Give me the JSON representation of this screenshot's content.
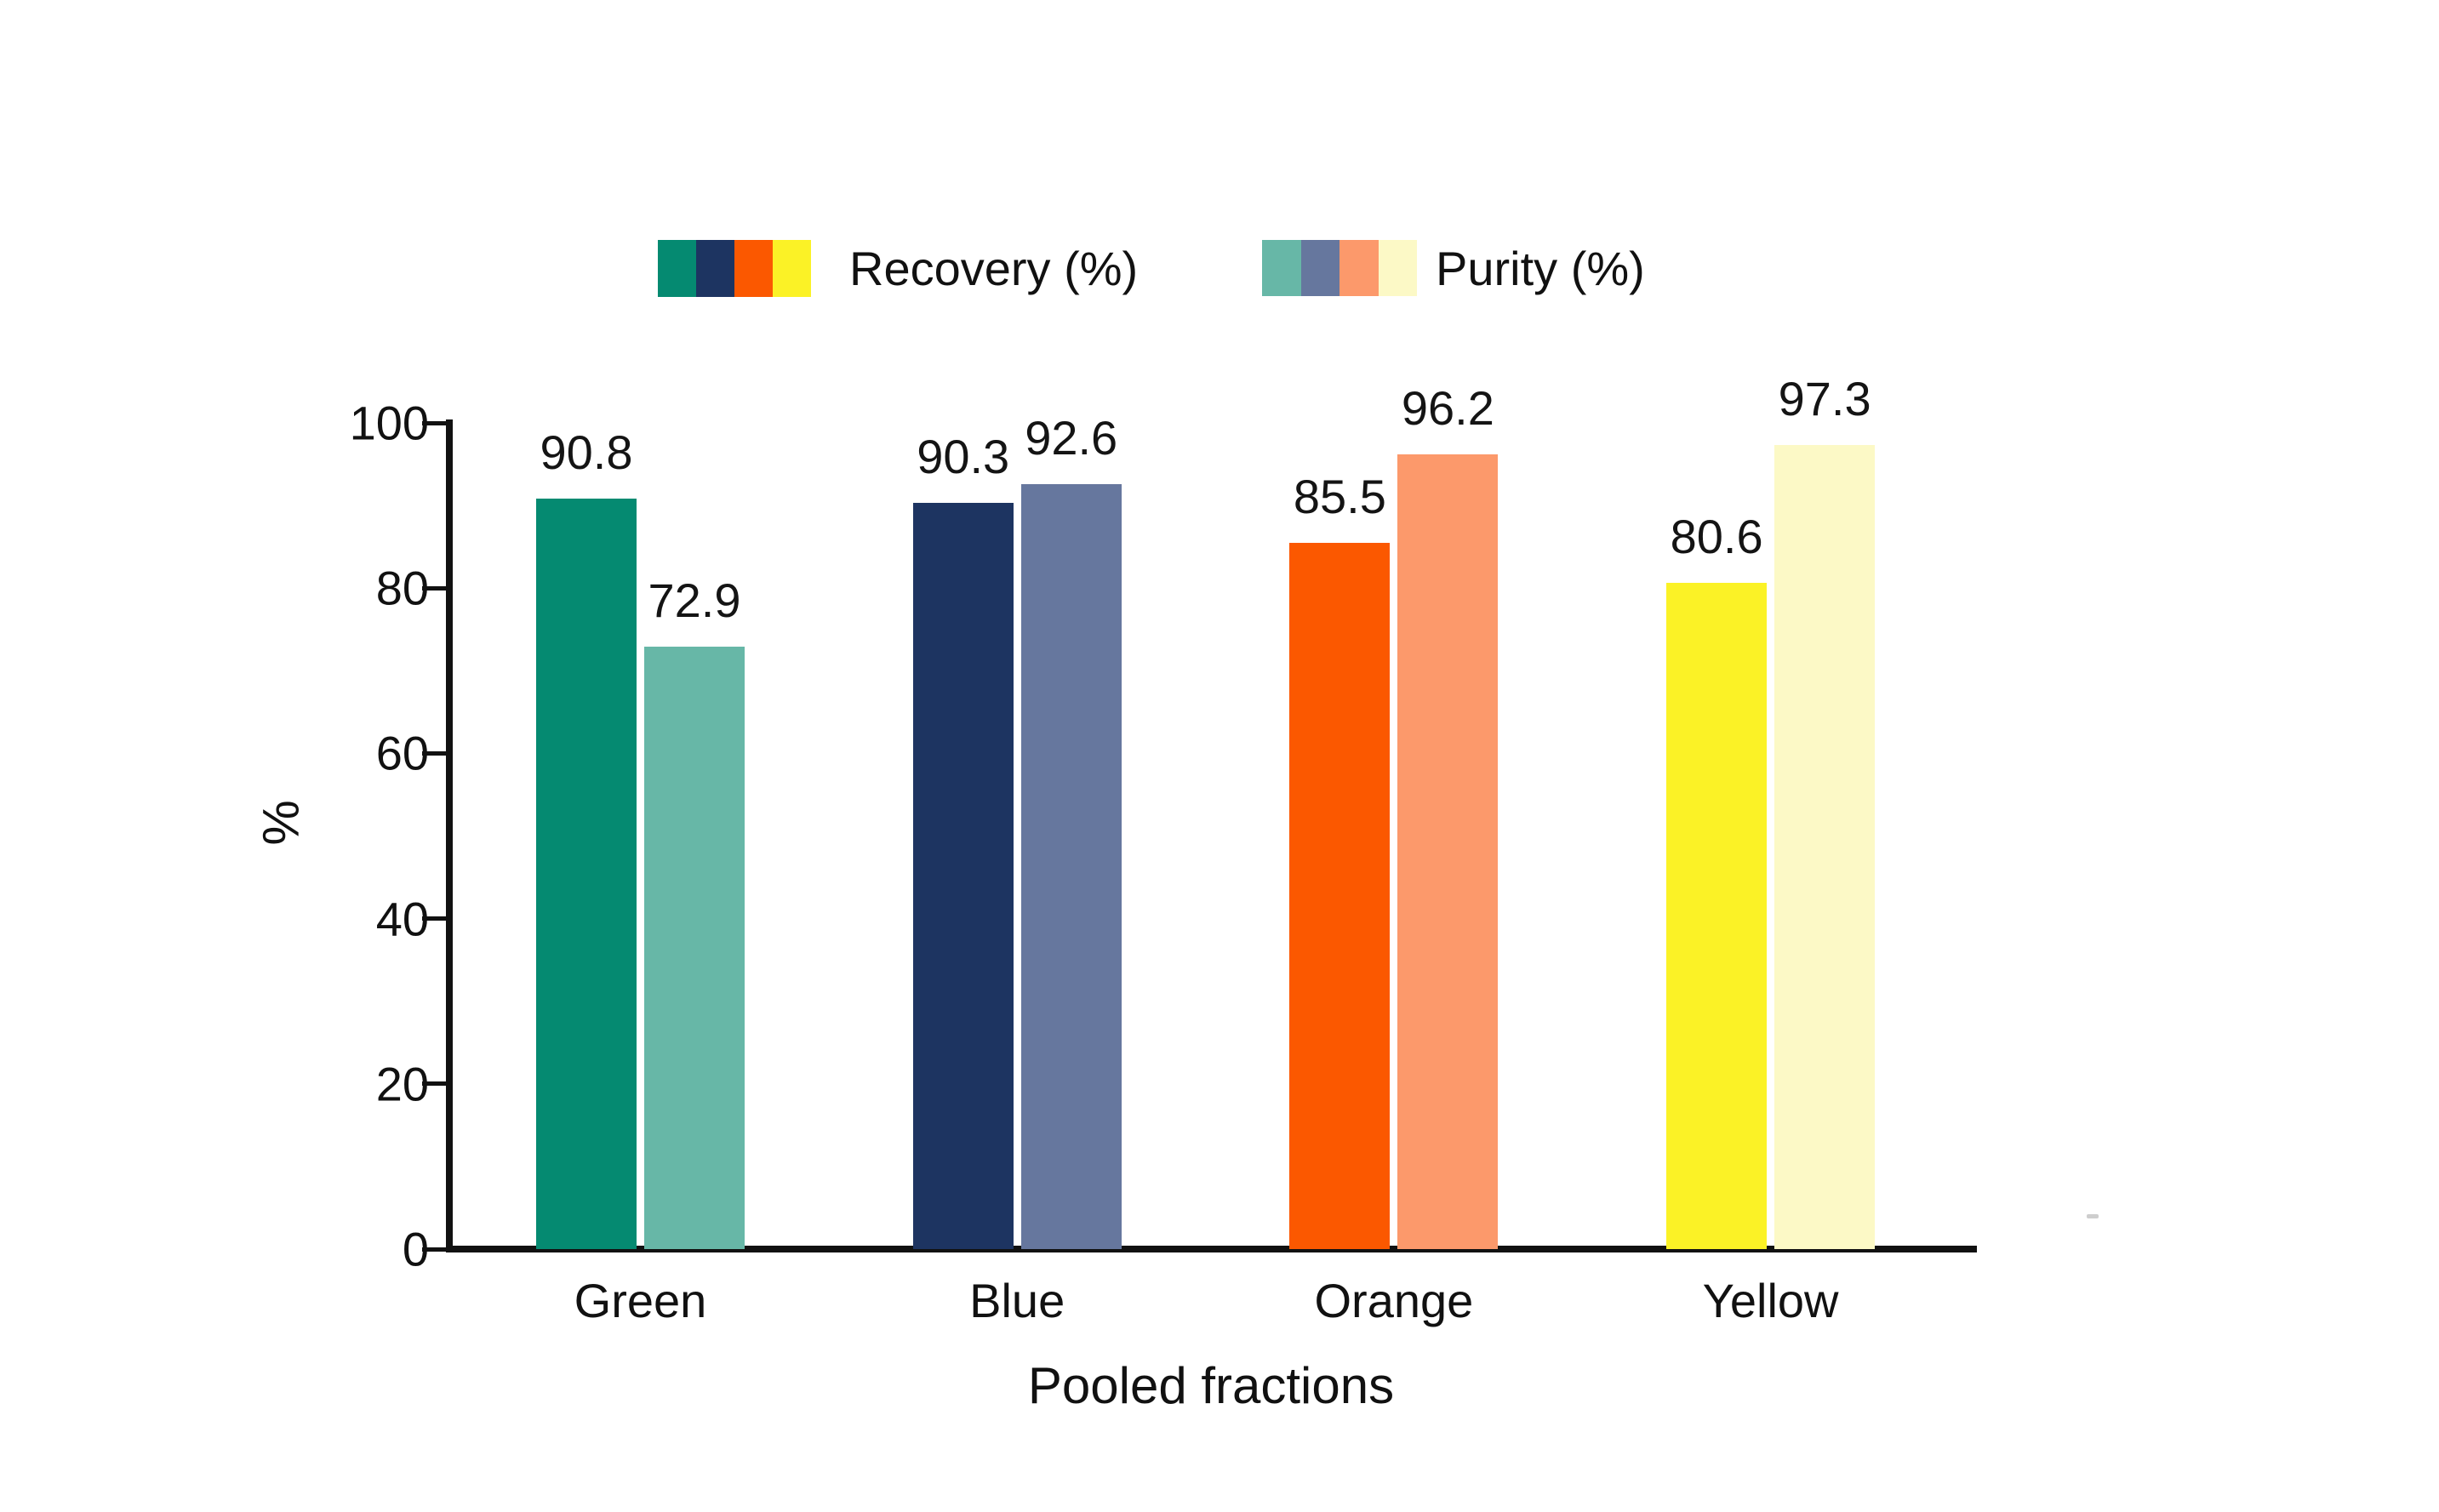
{
  "figure": {
    "background": "#ffffff",
    "text_color": "#111111",
    "axis_color": "#111111"
  },
  "legend": {
    "items": [
      {
        "label": "Recovery (%)",
        "colors": [
          "#058A71",
          "#1D3461",
          "#FB5800",
          "#FBF226"
        ]
      },
      {
        "label": "Purity (%)",
        "colors": [
          "#67B7A7",
          "#66779E",
          "#FC996B",
          "#FCF9C6"
        ]
      }
    ]
  },
  "chart_data": {
    "type": "bar",
    "title": "",
    "categories": [
      "Green",
      "Blue",
      "Orange",
      "Yellow"
    ],
    "series": [
      {
        "name": "Recovery (%)",
        "values": [
          90.8,
          90.3,
          85.5,
          80.6
        ],
        "colors": [
          "#058A71",
          "#1D3461",
          "#FB5800",
          "#FBF226"
        ]
      },
      {
        "name": "Purity (%)",
        "values": [
          72.9,
          92.6,
          96.2,
          97.3
        ],
        "colors": [
          "#67B7A7",
          "#66779E",
          "#FC996B",
          "#FCF9C6"
        ]
      }
    ],
    "xlabel": "Pooled fractions",
    "ylabel": "%",
    "ylim": [
      0,
      100
    ],
    "yticks": [
      0,
      20,
      40,
      60,
      80,
      100
    ],
    "grid": false,
    "legend_position": "top",
    "value_labels": true
  }
}
